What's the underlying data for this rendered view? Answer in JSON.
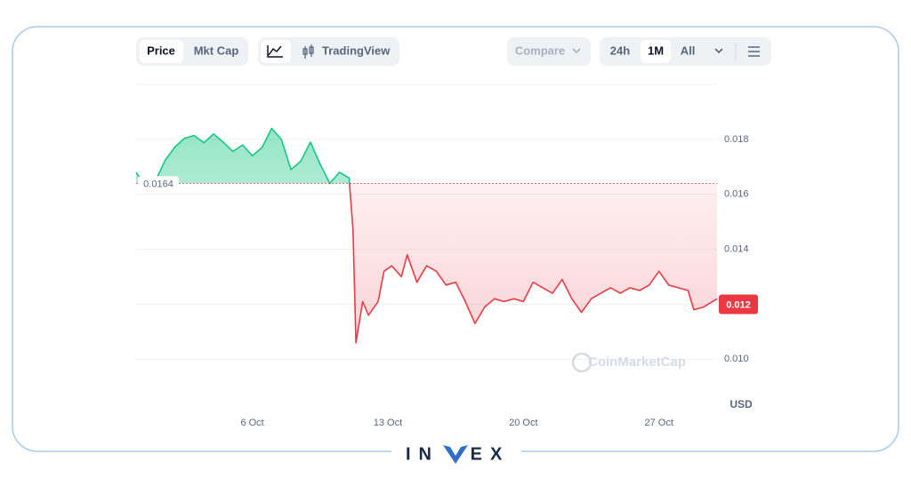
{
  "toolbar": {
    "price": "Price",
    "mkt_cap": "Mkt Cap",
    "tradingview": "TradingView",
    "compare": "Compare",
    "range_24h": "24h",
    "range_1m": "1M",
    "range_all": "All"
  },
  "chart_data": {
    "type": "line",
    "x": [
      0,
      0.3,
      1.0,
      1.5,
      2.0,
      2.5,
      3.0,
      3.5,
      4.0,
      4.5,
      5.0,
      5.5,
      6.0,
      6.5,
      7.0,
      7.5,
      8.0,
      8.5,
      9.0,
      9.5,
      10.0,
      10.5,
      11.0,
      11.2,
      11.35,
      11.7,
      12.0,
      12.5,
      12.8,
      13.2,
      13.7,
      14.0,
      14.5,
      15.0,
      15.5,
      16.0,
      16.5,
      17.0,
      17.5,
      18.0,
      18.5,
      19.0,
      19.5,
      20.0,
      20.5,
      21.0,
      21.5,
      22.0,
      22.5,
      23.0,
      23.5,
      24.0,
      24.5,
      25.0,
      25.5,
      26.0,
      26.5,
      27.0,
      27.5,
      28.0,
      28.5,
      28.8,
      29.3,
      30.0
    ],
    "series": [
      {
        "name": "Price",
        "values": [
          0.0168,
          0.0165,
          0.0165,
          0.01724,
          0.01772,
          0.01804,
          0.01814,
          0.01788,
          0.0182,
          0.0179,
          0.01756,
          0.0178,
          0.0174,
          0.0177,
          0.0184,
          0.018,
          0.0169,
          0.0172,
          0.0179,
          0.0171,
          0.0164,
          0.0168,
          0.0166,
          0.0147,
          0.0106,
          0.0121,
          0.0116,
          0.0121,
          0.0132,
          0.0134,
          0.013,
          0.0138,
          0.0128,
          0.0134,
          0.0132,
          0.0127,
          0.0128,
          0.0121,
          0.0113,
          0.0119,
          0.0122,
          0.0121,
          0.0122,
          0.0121,
          0.0128,
          0.0126,
          0.0124,
          0.0129,
          0.0122,
          0.0117,
          0.0122,
          0.0124,
          0.0126,
          0.0124,
          0.0126,
          0.0125,
          0.0127,
          0.0132,
          0.0127,
          0.0126,
          0.0125,
          0.0118,
          0.0119,
          0.0122
        ]
      }
    ],
    "up_color": "#16c784",
    "down_color": "#ea3943",
    "xlim": [
      0,
      30
    ],
    "xticks": [
      {
        "value": 6,
        "label": "6 Oct"
      },
      {
        "value": 13,
        "label": "13 Oct"
      },
      {
        "value": 20,
        "label": "20 Oct"
      },
      {
        "value": 27,
        "label": "27 Oct"
      }
    ],
    "ylim": [
      0.0082,
      0.02
    ],
    "yticks": [
      {
        "value": 0.01,
        "label": "0.010"
      },
      0.012,
      0.014,
      0.016,
      0.018
    ],
    "y_unit": "USD",
    "baseline": 0.0164,
    "price_tag": 0.012,
    "grid": true,
    "watermark": "CoinMarketCap"
  },
  "logo": {
    "left": "IN",
    "right": "EX"
  }
}
